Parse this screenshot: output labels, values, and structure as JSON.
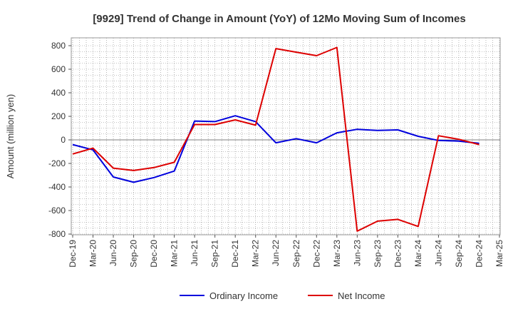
{
  "chart_data": {
    "type": "line",
    "title": "[9929]  Trend of Change in Amount (YoY) of 12Mo Moving Sum of Incomes",
    "xlabel": "",
    "ylabel": "Amount (million yen)",
    "ylim": [
      -800,
      800
    ],
    "yticks": [
      "800",
      "600",
      "400",
      "200",
      "0",
      "-200",
      "-400",
      "-600",
      "-800"
    ],
    "ytick_values": [
      800,
      600,
      400,
      200,
      0,
      -200,
      -400,
      -600,
      -800
    ],
    "x": [
      "Dec-19",
      "Mar-20",
      "Jun-20",
      "Sep-20",
      "Dec-20",
      "Mar-21",
      "Jun-21",
      "Sep-21",
      "Dec-21",
      "Mar-22",
      "Jun-22",
      "Sep-22",
      "Dec-22",
      "Mar-23",
      "Jun-23",
      "Sep-23",
      "Dec-23",
      "Mar-24",
      "Jun-24",
      "Sep-24",
      "Dec-24",
      "Mar-25"
    ],
    "grid": true,
    "legend_position": "bottom",
    "series": [
      {
        "name": "Ordinary Income",
        "color": "#0000dd",
        "values": [
          -40,
          -85,
          -315,
          -360,
          -320,
          -265,
          160,
          155,
          205,
          155,
          -25,
          10,
          -25,
          60,
          90,
          80,
          85,
          30,
          -5,
          -10,
          -30,
          null
        ]
      },
      {
        "name": "Net Income",
        "color": "#dd0000",
        "values": [
          -120,
          -70,
          -240,
          -260,
          -235,
          -190,
          130,
          130,
          170,
          125,
          775,
          745,
          715,
          785,
          -775,
          -690,
          -675,
          -735,
          35,
          5,
          -40,
          null
        ]
      }
    ]
  }
}
